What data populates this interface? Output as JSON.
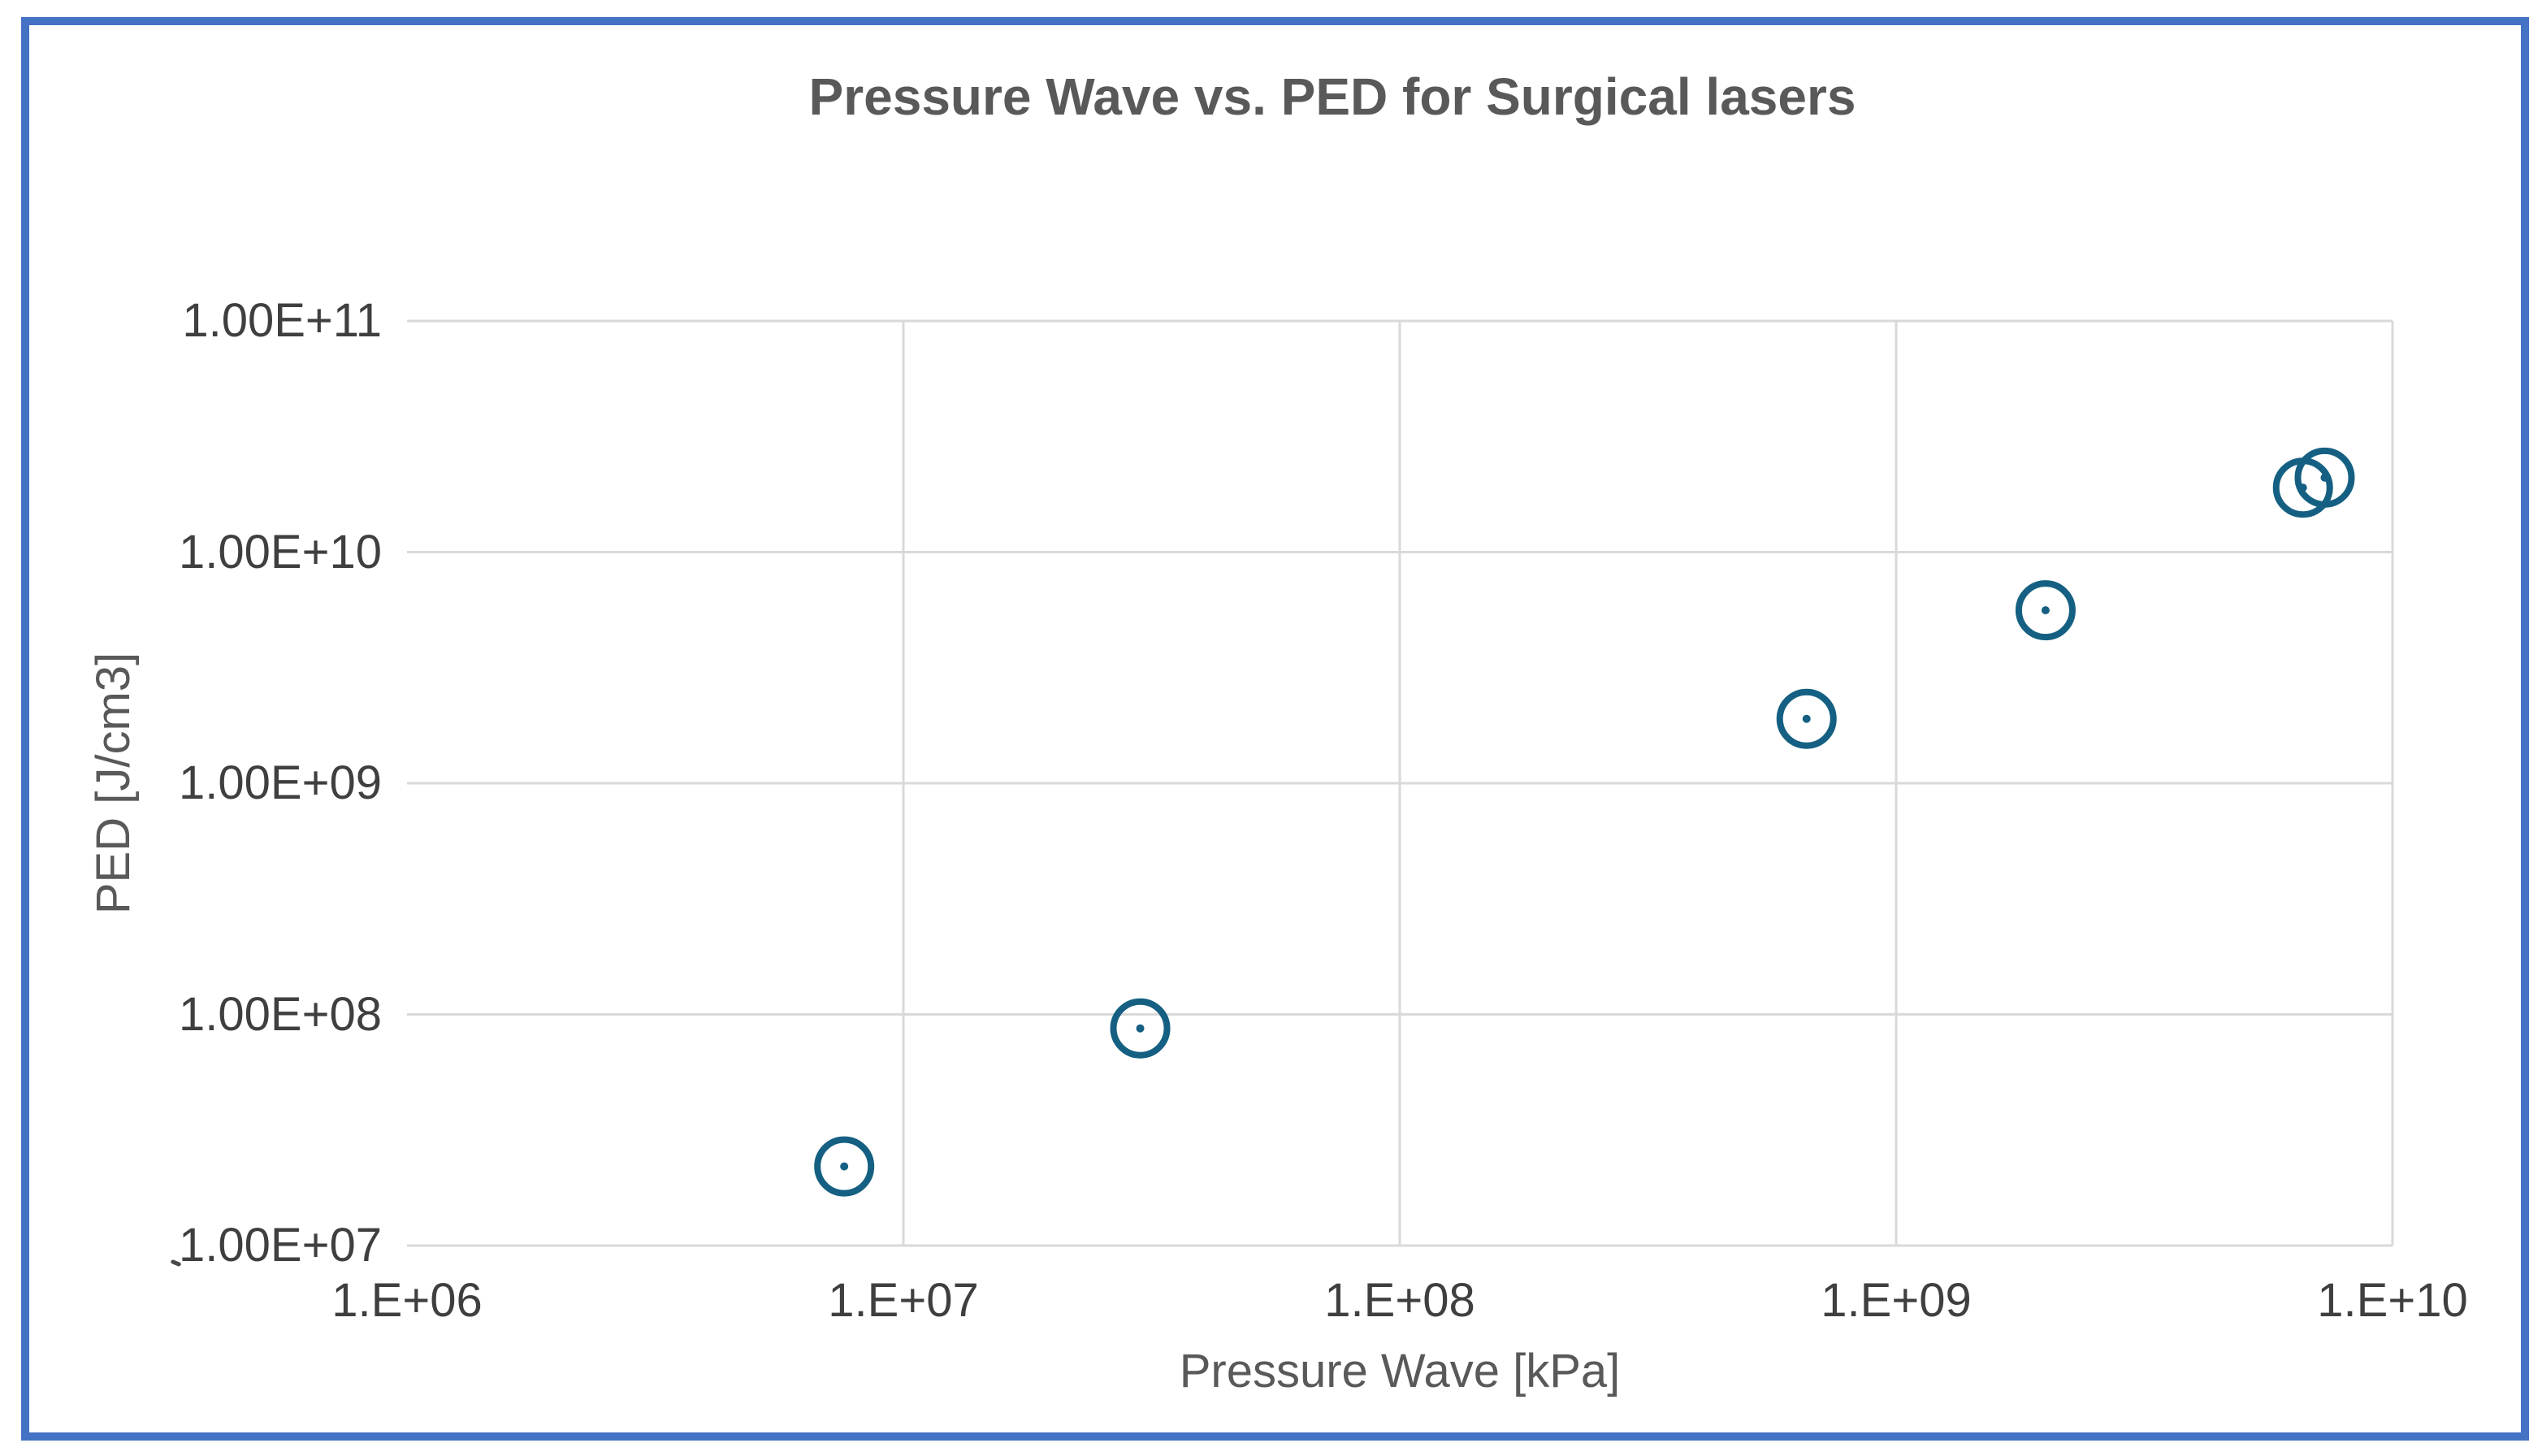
{
  "colors": {
    "figure_border": "#4472C4",
    "gridline": "#D9D9D9",
    "marker": "#156082",
    "tick_text": "#3F3F3F",
    "title_text": "#595959"
  },
  "chart_data": {
    "type": "scatter",
    "title": "Pressure Wave vs. PED for Surgical lasers",
    "xlabel": "Pressure Wave [kPa]",
    "ylabel": "PED [J/cm3]",
    "x_scale": "log",
    "y_scale": "log",
    "xlim": [
      1000000.0,
      10000000000.0
    ],
    "ylim": [
      10000000.0,
      100000000000.0
    ],
    "grid": true,
    "legend": false,
    "x_ticks": [
      {
        "value": 1000000.0,
        "label": "1.E+06"
      },
      {
        "value": 10000000.0,
        "label": "1.E+07"
      },
      {
        "value": 100000000.0,
        "label": "1.E+08"
      },
      {
        "value": 1000000000.0,
        "label": "1.E+09"
      },
      {
        "value": 10000000000.0,
        "label": "1.E+10"
      }
    ],
    "y_ticks": [
      {
        "value": 10000000.0,
        "label": "1.00E+07"
      },
      {
        "value": 100000000.0,
        "label": "1.00E+08"
      },
      {
        "value": 1000000000.0,
        "label": "1.00E+09"
      },
      {
        "value": 10000000000.0,
        "label": "1.00E+10"
      },
      {
        "value": 100000000000.0,
        "label": "1.00E+11"
      }
    ],
    "series": [
      {
        "marker": "open-circle",
        "color": "#156082",
        "points": [
          {
            "x": 7600000.0,
            "y": 22000000.0
          },
          {
            "x": 30000000.0,
            "y": 87000000.0
          },
          {
            "x": 660000000.0,
            "y": 1900000000.0
          },
          {
            "x": 2000000000.0,
            "y": 5600000000.0
          },
          {
            "x": 6600000000.0,
            "y": 19000000000.0
          },
          {
            "x": 7300000000.0,
            "y": 21000000000.0
          }
        ]
      }
    ]
  }
}
